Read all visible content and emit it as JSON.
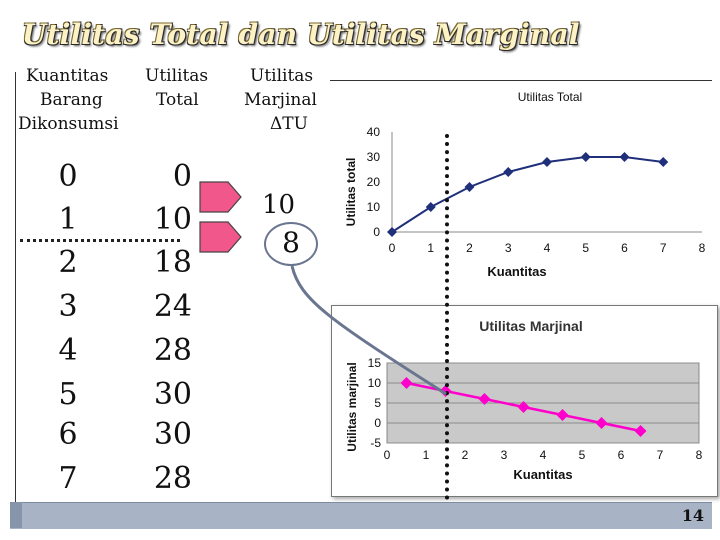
{
  "slide": {
    "title": "Utilitas Total dan Utilitas Marginal",
    "page_number": "14"
  },
  "table": {
    "headers": {
      "qty": [
        "Kuantitas",
        "Barang",
        "Dikonsumsi"
      ],
      "tu": [
        "Utilitas",
        "Total"
      ],
      "mu": [
        "Utilitas",
        "Marjinal",
        "ΔTU"
      ]
    },
    "quantities": [
      "0",
      "1",
      "2",
      "3",
      "4",
      "5",
      "6",
      "7"
    ],
    "total_utilities": [
      "0",
      "10",
      "18",
      "24",
      "28",
      "30",
      "30",
      "28"
    ],
    "marginal_utilities": [
      "10",
      "8"
    ]
  },
  "colors": {
    "tu_series": "#1f2f7a",
    "mu_series": "#ff00cc",
    "plot_bg": "#c9c9c9",
    "arrow_fill": "#f2578c",
    "connector": "#6a7590"
  },
  "chart_data": [
    {
      "type": "line",
      "title": "Utilitas Total",
      "xlabel": "Kuantitas",
      "ylabel": "Utilitas total",
      "xlim": [
        0,
        8
      ],
      "ylim": [
        0,
        40
      ],
      "xticks": [
        "0",
        "1",
        "2",
        "3",
        "4",
        "5",
        "6",
        "7",
        "8"
      ],
      "yticks": [
        "0",
        "10",
        "20",
        "30",
        "40"
      ],
      "grid": false,
      "series": [
        {
          "x": [
            0,
            1,
            2,
            3,
            4,
            5,
            6,
            7
          ],
          "values": [
            0,
            10,
            18,
            24,
            28,
            30,
            30,
            28
          ]
        }
      ]
    },
    {
      "type": "line",
      "title": "Utilitas Marjinal",
      "xlabel": "Kuantitas",
      "ylabel": "Utilitas marjinal",
      "xlim": [
        0,
        8
      ],
      "ylim": [
        -5,
        15
      ],
      "xticks": [
        "0",
        "1",
        "2",
        "3",
        "4",
        "5",
        "6",
        "7",
        "8"
      ],
      "yticks": [
        "-5",
        "0",
        "5",
        "10",
        "15"
      ],
      "grid": true,
      "series": [
        {
          "x": [
            0.5,
            1.5,
            2.5,
            3.5,
            4.5,
            5.5,
            6.5
          ],
          "values": [
            10,
            8,
            6,
            4,
            2,
            0,
            -2
          ]
        }
      ]
    }
  ]
}
